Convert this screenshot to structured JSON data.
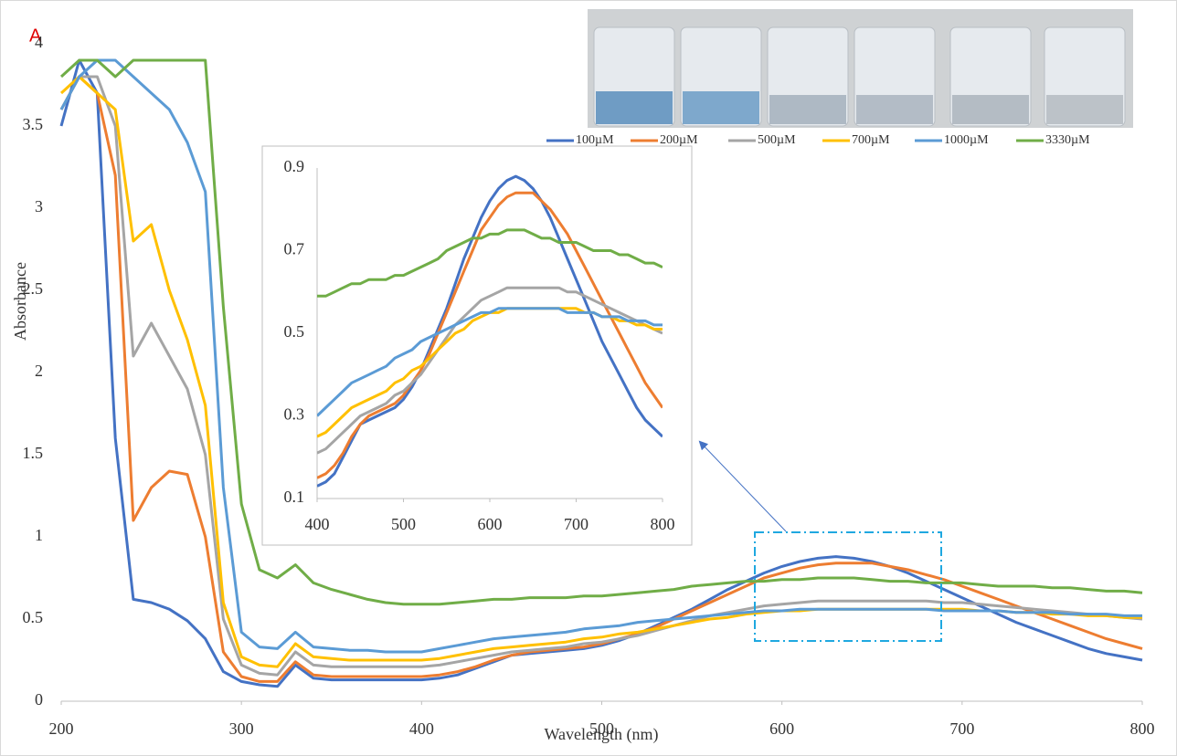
{
  "chart_data": {
    "type": "line",
    "annotation": "A",
    "xlabel": "Wavelength (nm)",
    "ylabel": "Absorbance",
    "xlim": [
      200,
      800
    ],
    "ylim": [
      0,
      4
    ],
    "xticks": [
      200,
      300,
      400,
      500,
      600,
      700,
      800
    ],
    "yticks": [
      0,
      0.5,
      1,
      1.5,
      2,
      2.5,
      3,
      3.5,
      4
    ],
    "x": [
      200,
      210,
      220,
      230,
      240,
      250,
      260,
      270,
      280,
      290,
      300,
      310,
      320,
      330,
      340,
      350,
      360,
      370,
      380,
      390,
      400,
      410,
      420,
      430,
      440,
      450,
      460,
      470,
      480,
      490,
      500,
      510,
      520,
      530,
      540,
      550,
      560,
      570,
      580,
      590,
      600,
      610,
      620,
      630,
      640,
      650,
      660,
      670,
      680,
      690,
      700,
      710,
      720,
      730,
      740,
      750,
      760,
      770,
      780,
      790,
      800
    ],
    "series": [
      {
        "name": "100µM",
        "color": "#4472c4",
        "values": [
          3.5,
          3.9,
          3.7,
          1.6,
          0.62,
          0.6,
          0.56,
          0.49,
          0.38,
          0.18,
          0.12,
          0.1,
          0.09,
          0.22,
          0.14,
          0.13,
          0.13,
          0.13,
          0.13,
          0.13,
          0.13,
          0.14,
          0.16,
          0.2,
          0.24,
          0.28,
          0.29,
          0.3,
          0.31,
          0.32,
          0.34,
          0.37,
          0.41,
          0.46,
          0.51,
          0.56,
          0.62,
          0.68,
          0.73,
          0.78,
          0.82,
          0.85,
          0.87,
          0.88,
          0.87,
          0.85,
          0.82,
          0.78,
          0.73,
          0.68,
          0.63,
          0.58,
          0.53,
          0.48,
          0.44,
          0.4,
          0.36,
          0.32,
          0.29,
          0.27,
          0.25
        ]
      },
      {
        "name": "200µM",
        "color": "#ed7d31",
        "values": [
          3.6,
          3.8,
          3.7,
          3.2,
          1.1,
          1.3,
          1.4,
          1.38,
          1.0,
          0.3,
          0.15,
          0.12,
          0.12,
          0.24,
          0.16,
          0.15,
          0.15,
          0.15,
          0.15,
          0.15,
          0.15,
          0.16,
          0.18,
          0.21,
          0.25,
          0.28,
          0.3,
          0.31,
          0.32,
          0.33,
          0.35,
          0.38,
          0.41,
          0.45,
          0.5,
          0.55,
          0.6,
          0.65,
          0.7,
          0.75,
          0.78,
          0.81,
          0.83,
          0.84,
          0.84,
          0.84,
          0.82,
          0.8,
          0.77,
          0.74,
          0.7,
          0.66,
          0.62,
          0.58,
          0.54,
          0.5,
          0.46,
          0.42,
          0.38,
          0.35,
          0.32
        ]
      },
      {
        "name": "500µM",
        "color": "#a5a5a5",
        "values": [
          3.6,
          3.8,
          3.8,
          3.5,
          2.1,
          2.3,
          2.1,
          1.9,
          1.5,
          0.5,
          0.22,
          0.17,
          0.16,
          0.3,
          0.22,
          0.21,
          0.21,
          0.21,
          0.21,
          0.21,
          0.21,
          0.22,
          0.24,
          0.26,
          0.28,
          0.3,
          0.31,
          0.32,
          0.33,
          0.35,
          0.36,
          0.38,
          0.4,
          0.43,
          0.46,
          0.49,
          0.52,
          0.54,
          0.56,
          0.58,
          0.59,
          0.6,
          0.61,
          0.61,
          0.61,
          0.61,
          0.61,
          0.61,
          0.61,
          0.6,
          0.6,
          0.59,
          0.58,
          0.57,
          0.56,
          0.55,
          0.54,
          0.53,
          0.52,
          0.51,
          0.5
        ]
      },
      {
        "name": "700µM",
        "color": "#ffc000",
        "values": [
          3.7,
          3.8,
          3.7,
          3.6,
          2.8,
          2.9,
          2.5,
          2.2,
          1.8,
          0.6,
          0.27,
          0.22,
          0.21,
          0.35,
          0.27,
          0.26,
          0.25,
          0.25,
          0.25,
          0.25,
          0.25,
          0.26,
          0.28,
          0.3,
          0.32,
          0.33,
          0.34,
          0.35,
          0.36,
          0.38,
          0.39,
          0.41,
          0.42,
          0.44,
          0.46,
          0.48,
          0.5,
          0.51,
          0.53,
          0.54,
          0.55,
          0.55,
          0.56,
          0.56,
          0.56,
          0.56,
          0.56,
          0.56,
          0.56,
          0.56,
          0.56,
          0.55,
          0.55,
          0.54,
          0.54,
          0.53,
          0.53,
          0.52,
          0.52,
          0.51,
          0.51
        ]
      },
      {
        "name": "1000µM",
        "color": "#5b9bd5",
        "values": [
          3.6,
          3.8,
          3.9,
          3.9,
          3.8,
          3.7,
          3.6,
          3.4,
          3.1,
          1.3,
          0.42,
          0.33,
          0.32,
          0.42,
          0.33,
          0.32,
          0.31,
          0.31,
          0.3,
          0.3,
          0.3,
          0.32,
          0.34,
          0.36,
          0.38,
          0.39,
          0.4,
          0.41,
          0.42,
          0.44,
          0.45,
          0.46,
          0.48,
          0.49,
          0.5,
          0.51,
          0.52,
          0.53,
          0.54,
          0.55,
          0.55,
          0.56,
          0.56,
          0.56,
          0.56,
          0.56,
          0.56,
          0.56,
          0.56,
          0.55,
          0.55,
          0.55,
          0.55,
          0.54,
          0.54,
          0.54,
          0.53,
          0.53,
          0.53,
          0.52,
          0.52
        ]
      },
      {
        "name": "3330µM",
        "color": "#70ad47",
        "values": [
          3.8,
          3.9,
          3.9,
          3.8,
          3.9,
          3.9,
          3.9,
          3.9,
          3.9,
          2.4,
          1.2,
          0.8,
          0.75,
          0.83,
          0.72,
          0.68,
          0.65,
          0.62,
          0.6,
          0.59,
          0.59,
          0.59,
          0.6,
          0.61,
          0.62,
          0.62,
          0.63,
          0.63,
          0.63,
          0.64,
          0.64,
          0.65,
          0.66,
          0.67,
          0.68,
          0.7,
          0.71,
          0.72,
          0.73,
          0.73,
          0.74,
          0.74,
          0.75,
          0.75,
          0.75,
          0.74,
          0.73,
          0.73,
          0.72,
          0.72,
          0.72,
          0.71,
          0.7,
          0.7,
          0.7,
          0.69,
          0.69,
          0.68,
          0.67,
          0.67,
          0.66
        ]
      }
    ],
    "inset": {
      "xlim": [
        400,
        800
      ],
      "ylim": [
        0.1,
        0.9
      ],
      "xticks": [
        400,
        500,
        600,
        700,
        800
      ],
      "yticks": [
        0.1,
        0.3,
        0.5,
        0.7,
        0.9
      ]
    }
  }
}
